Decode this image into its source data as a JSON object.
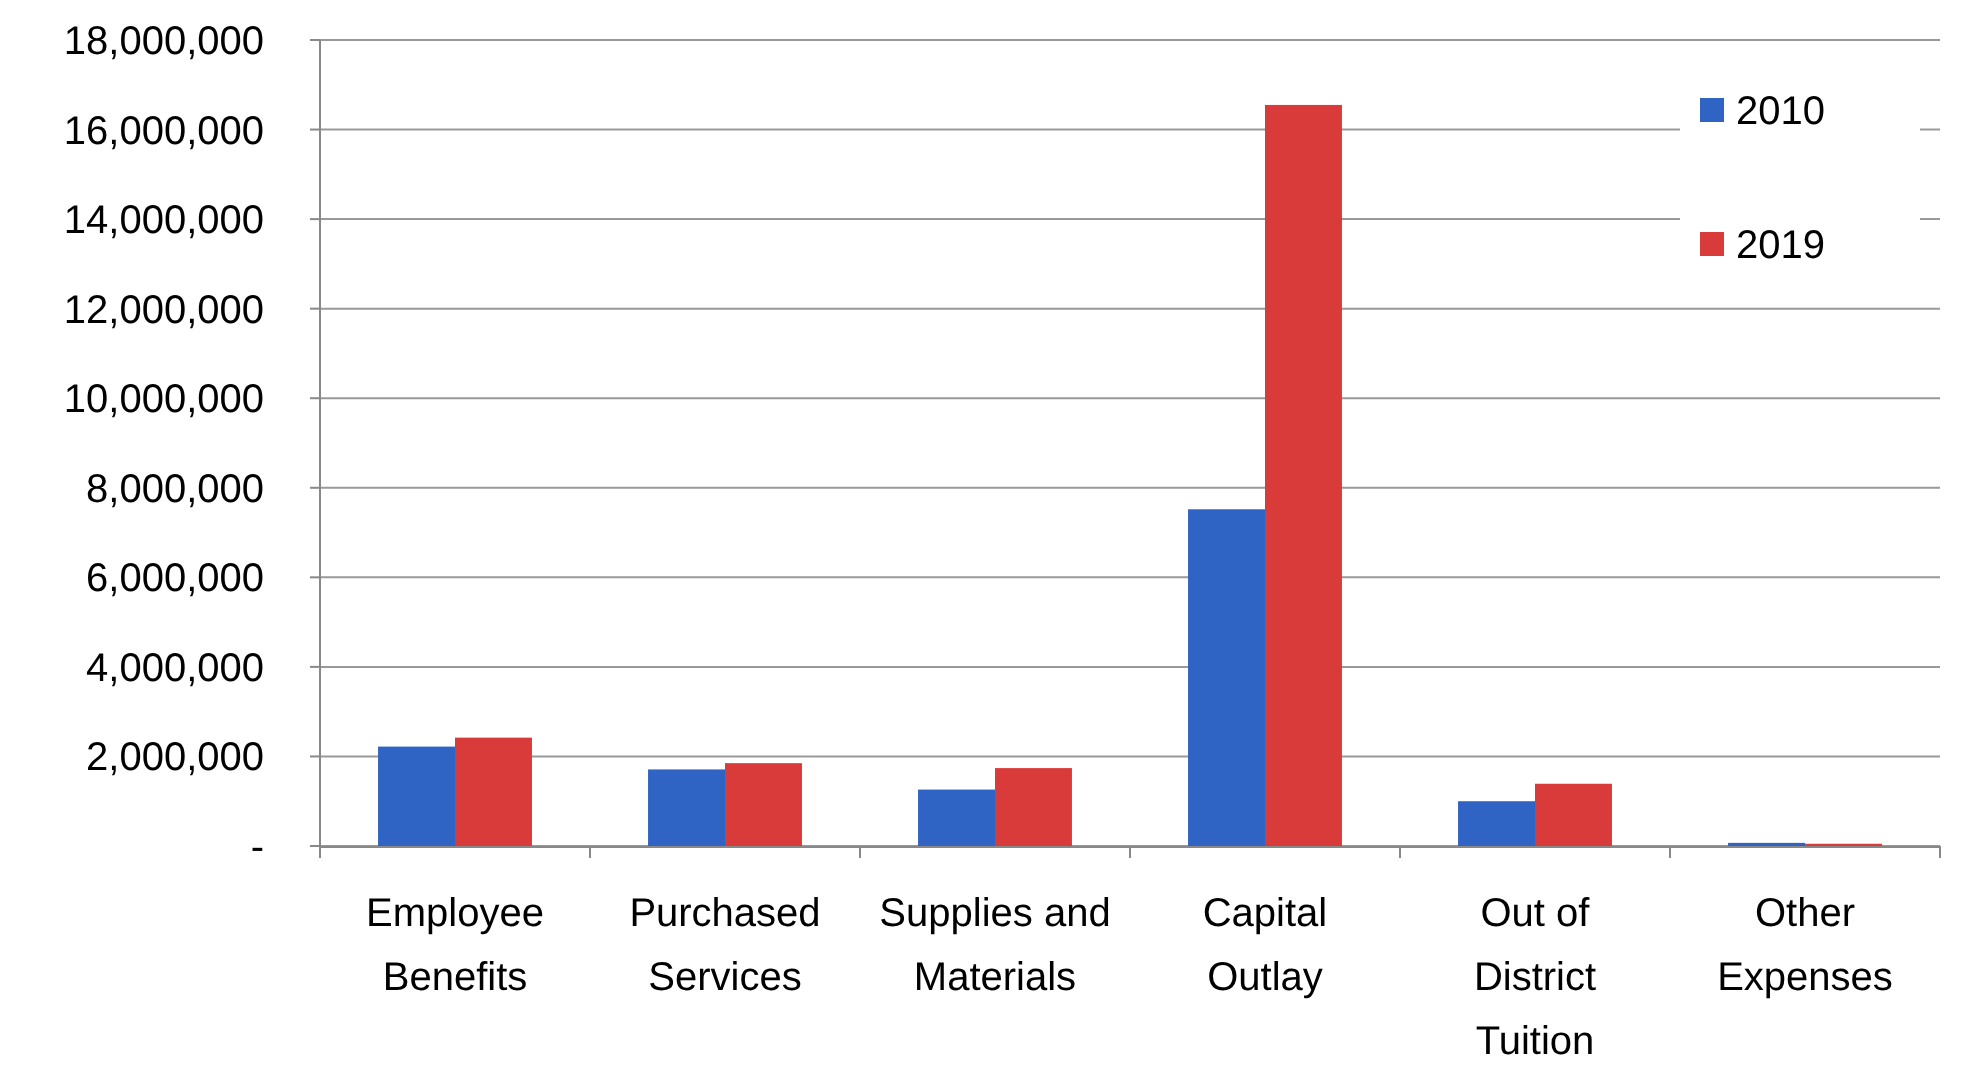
{
  "chart_data": {
    "type": "bar",
    "categories": [
      "Employee Benefits",
      "Purchased Services",
      "Supplies and Materials",
      "Capital Outlay",
      "Out of District Tuition",
      "Other Expenses"
    ],
    "series": [
      {
        "name": "2010",
        "color": "#2f63c4",
        "values": [
          2220000,
          1710000,
          1260000,
          7520000,
          1000000,
          70000
        ]
      },
      {
        "name": "2019",
        "color": "#d93a3a",
        "values": [
          2420000,
          1850000,
          1740000,
          16550000,
          1390000,
          50000
        ]
      }
    ],
    "ylim": [
      0,
      18000000
    ],
    "yticks": [
      {
        "value": 0,
        "label": "-"
      },
      {
        "value": 2000000,
        "label": "2,000,000"
      },
      {
        "value": 4000000,
        "label": "4,000,000"
      },
      {
        "value": 6000000,
        "label": "6,000,000"
      },
      {
        "value": 8000000,
        "label": "8,000,000"
      },
      {
        "value": 10000000,
        "label": "10,000,000"
      },
      {
        "value": 12000000,
        "label": "12,000,000"
      },
      {
        "value": 14000000,
        "label": "14,000,000"
      },
      {
        "value": 16000000,
        "label": "16,000,000"
      },
      {
        "value": 18000000,
        "label": "18,000,000"
      }
    ],
    "grid": "y",
    "legend": "top right"
  }
}
